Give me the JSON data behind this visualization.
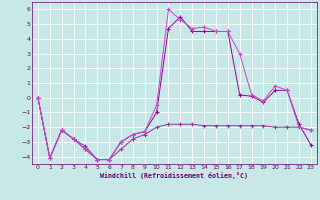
{
  "xlabel": "Windchill (Refroidissement éolien,°C)",
  "x": [
    0,
    1,
    2,
    3,
    4,
    5,
    6,
    7,
    8,
    9,
    10,
    11,
    12,
    13,
    14,
    15,
    16,
    17,
    18,
    19,
    20,
    21,
    22,
    23
  ],
  "line1": [
    0.0,
    -4.1,
    -2.2,
    -2.8,
    -3.3,
    -4.2,
    -4.2,
    -3.5,
    -2.8,
    -2.5,
    -2.0,
    -1.8,
    -1.8,
    -1.8,
    -1.9,
    -1.9,
    -1.9,
    -1.9,
    -1.9,
    -1.9,
    -2.0,
    -2.0,
    -2.0,
    -2.2
  ],
  "line2": [
    0.0,
    -4.1,
    -2.2,
    -2.8,
    -3.5,
    -4.2,
    -4.2,
    -3.0,
    -2.5,
    -2.3,
    -1.0,
    4.7,
    5.5,
    4.5,
    4.5,
    4.5,
    4.5,
    0.2,
    0.1,
    -0.3,
    0.5,
    0.5,
    -1.8,
    -3.2
  ],
  "line3": [
    0.0,
    -4.1,
    -2.2,
    -2.8,
    -3.5,
    -4.2,
    -4.2,
    -3.0,
    -2.5,
    -2.3,
    -0.5,
    6.0,
    5.3,
    4.7,
    4.8,
    4.5,
    4.5,
    3.0,
    0.2,
    -0.2,
    0.8,
    0.5,
    -2.0,
    -2.2
  ],
  "line_color1": "#993399",
  "line_color2": "#990099",
  "line_color3": "#cc44cc",
  "bg_color": "#c8e8e8",
  "grid_color": "#aacccc",
  "axis_color": "#660066",
  "text_color": "#660066",
  "ylim": [
    -4.5,
    6.5
  ],
  "yticks": [
    -4,
    -3,
    -2,
    -1,
    0,
    1,
    2,
    3,
    4,
    5,
    6
  ],
  "xticks": [
    0,
    1,
    2,
    3,
    4,
    5,
    6,
    7,
    8,
    9,
    10,
    11,
    12,
    13,
    14,
    15,
    16,
    17,
    18,
    19,
    20,
    21,
    22,
    23
  ]
}
